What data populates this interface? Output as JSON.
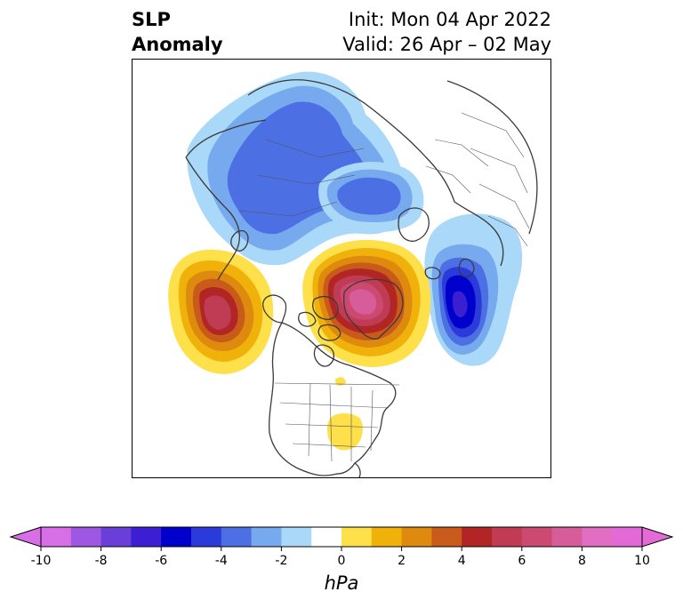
{
  "title": {
    "left_line1": "SLP",
    "left_line2": "Anomaly",
    "right_line1": "Init: Mon 04 Apr 2022",
    "right_line2": "Valid: 26 Apr – 02 May"
  },
  "colorbar": {
    "unit": "hPa",
    "ticks": [
      "-10",
      "-8",
      "-6",
      "-4",
      "-2",
      "0",
      "2",
      "4",
      "6",
      "8",
      "10"
    ],
    "levels": [
      -10,
      -9,
      -8,
      -7,
      -6,
      -5,
      -4,
      -3,
      -2,
      -1,
      1,
      2,
      3,
      4,
      5,
      6,
      7,
      8,
      9,
      10
    ],
    "colors": [
      "#d86fe6",
      "#9d57e0",
      "#6a3fd8",
      "#3c1fd1",
      "#0000cc",
      "#2a3bd9",
      "#4d6fe4",
      "#76a9ee",
      "#a9d8f8",
      "#ffffff",
      "#fde04a",
      "#f0b20a",
      "#dd8a0e",
      "#c85a1a",
      "#b12625",
      "#c03c54",
      "#cc4a72",
      "#d65c9a",
      "#e26ec4",
      "#e46ad8"
    ],
    "extend_min_color": "#d86fe6",
    "extend_max_color": "#e46ad8"
  },
  "map": {
    "projection": "polar stereographic (North Pole)",
    "anomaly_centers": [
      {
        "region": "Northeast Pacific / Gulf of Alaska",
        "sign": "positive",
        "peak_hPa": 8
      },
      {
        "region": "Greenland / Baffin Bay",
        "sign": "positive",
        "peak_hPa": 10
      },
      {
        "region": "Southeastern United States",
        "sign": "positive",
        "peak_hPa": 1
      },
      {
        "region": "Siberia / Arctic Russia",
        "sign": "negative",
        "peak_hPa": -4
      },
      {
        "region": "Northern Scandinavia / Barents",
        "sign": "negative",
        "peak_hPa": -4
      },
      {
        "region": "North Atlantic south of Iceland",
        "sign": "negative",
        "peak_hPa": -7
      }
    ]
  }
}
